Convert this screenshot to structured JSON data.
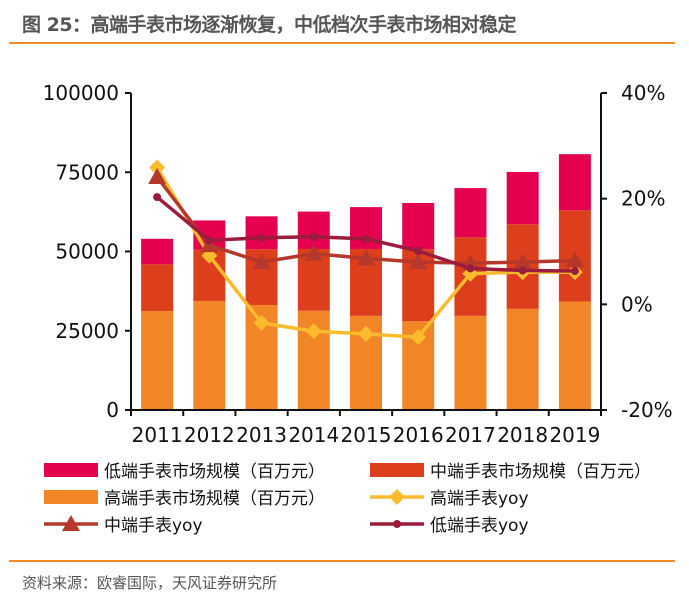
{
  "title": "图 25：高端手表市场逐渐恢复，中低档次手表市场相对稳定",
  "source": "资料来源：欧睿国际，天风证券研究所",
  "chart_data": {
    "type": "bar+line",
    "categories": [
      "2011",
      "2012",
      "2013",
      "2014",
      "2015",
      "2016",
      "2017",
      "2018",
      "2019"
    ],
    "left_axis": {
      "ylim": [
        0,
        100000
      ],
      "ticks": [
        "0",
        "25000",
        "50000",
        "75000",
        "100000"
      ],
      "tick_values": [
        0,
        25000,
        50000,
        75000,
        100000
      ]
    },
    "right_axis": {
      "ylim": [
        -20,
        40
      ],
      "ticks": [
        "-20%",
        "0%",
        "20%",
        "40%"
      ],
      "tick_values": [
        -20,
        0,
        20,
        40
      ]
    },
    "grid": false,
    "legend_placement": "bottom",
    "stacked_bars": [
      {
        "name": "高端手表市场规模（百万元）",
        "color": "#f28525",
        "values": [
          31200,
          34400,
          33100,
          31300,
          29700,
          28000,
          29700,
          31900,
          34200
        ]
      },
      {
        "name": "中端手表市场规模（百万元）",
        "color": "#dd3e1c",
        "values": [
          14800,
          16200,
          17600,
          19500,
          21100,
          22700,
          24800,
          26700,
          28800
        ]
      },
      {
        "name": "低端手表市场规模（百万元）",
        "color": "#e5004f",
        "values": [
          8000,
          9200,
          10400,
          11800,
          13200,
          14600,
          15500,
          16500,
          17700
        ]
      }
    ],
    "lines": [
      {
        "name": "高端手表yoy",
        "color": "#fbbb2c",
        "marker": "diamond",
        "values": [
          25.9,
          9.2,
          -3.5,
          -5.1,
          -5.6,
          -6.2,
          5.8,
          6.1,
          6.1
        ]
      },
      {
        "name": "中端手表yoy",
        "color": "#b5382a",
        "marker": "triangle",
        "values": [
          24.1,
          11.2,
          8.0,
          9.6,
          8.7,
          8.0,
          7.8,
          8.0,
          8.3
        ]
      },
      {
        "name": "低端手表yoy",
        "color": "#9b1c3c",
        "marker": "circle",
        "values": [
          20.3,
          12.1,
          12.6,
          12.8,
          12.4,
          10.1,
          6.8,
          6.4,
          6.3
        ]
      }
    ],
    "legend_order": [
      "低端手表市场规模（百万元）",
      "中端手表市场规模（百万元）",
      "高端手表市场规模（百万元）",
      "高端手表yoy",
      "中端手表yoy",
      "低端手表yoy"
    ],
    "legend_labels": [
      "低端手表市场规模（百万元）",
      "中端手表市场规模（百万元）",
      "高端手表市场规模（百万元）",
      "高端手表yoy",
      "中端手表yoy",
      "低端手表yoy"
    ]
  }
}
